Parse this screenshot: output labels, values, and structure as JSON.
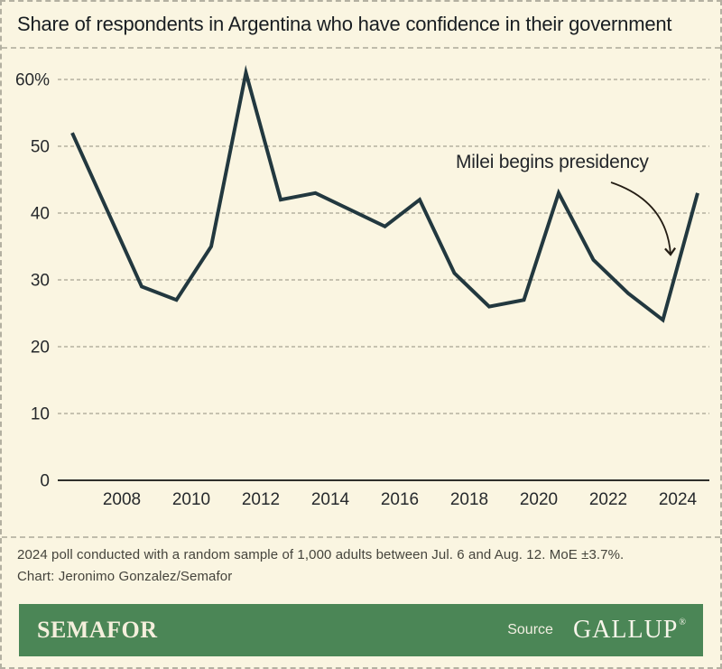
{
  "title": "Share of respondents in Argentina who have confidence in their government",
  "chart_data": {
    "type": "line",
    "title": "Share of respondents in Argentina who have confidence in their government",
    "x": [
      2006,
      2008,
      2009,
      2010,
      2011,
      2012,
      2013,
      2015,
      2016,
      2017,
      2018,
      2019,
      2020,
      2021,
      2022,
      2023,
      2024
    ],
    "values": [
      52,
      29,
      27,
      35,
      61,
      42,
      43,
      38,
      42,
      31,
      26,
      27,
      43,
      33,
      28,
      24,
      43
    ],
    "ylabel": "",
    "xlabel": "",
    "ylim": [
      0,
      65
    ],
    "xlim": [
      2005.5,
      2025
    ],
    "xticks": [
      2008,
      2010,
      2012,
      2014,
      2016,
      2018,
      2020,
      2022,
      2024
    ],
    "yticks": [
      {
        "value": 0,
        "label": "0"
      },
      {
        "value": 10,
        "label": "10"
      },
      {
        "value": 20,
        "label": "20"
      },
      {
        "value": 30,
        "label": "30"
      },
      {
        "value": 40,
        "label": "40"
      },
      {
        "value": 50,
        "label": "50"
      },
      {
        "value": 60,
        "label": "60%"
      }
    ],
    "grid": "horizontal-dashed",
    "legend": "none",
    "line_color": "#22383f",
    "annotation": {
      "text": "Milei begins presidency",
      "target_year": 2023.5
    }
  },
  "notes": {
    "line1": "2024 poll conducted with a random sample of 1,000 adults between Jul. 6 and Aug. 12. MoE ±3.7%.",
    "line2": "Chart: Jeronimo Gonzalez/Semafor"
  },
  "footer": {
    "brand": "SEMAFOR",
    "source_label": "Source",
    "source_name": "GALLUP",
    "registered_mark": "®"
  },
  "colors": {
    "background": "#faf5e1",
    "accent_green": "#4b8656",
    "line": "#22383f",
    "gridline": "#b5b2a0",
    "axis": "#2f2f2b",
    "arrow": "#241d14"
  }
}
